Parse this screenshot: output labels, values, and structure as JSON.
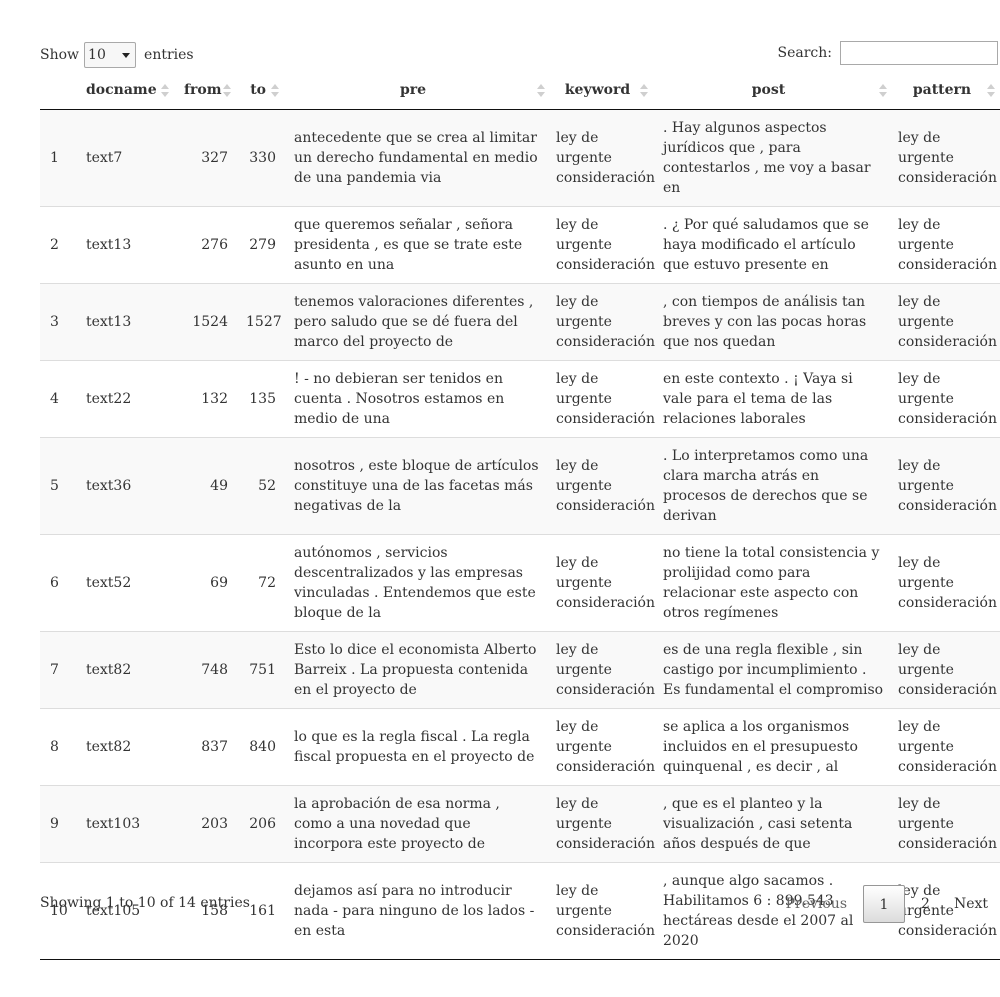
{
  "length": {
    "show_label": "Show",
    "selected": "10",
    "entries_label": "entries"
  },
  "search": {
    "label": "Search:",
    "value": "",
    "placeholder": ""
  },
  "columns": [
    "",
    "docname",
    "from",
    "to",
    "pre",
    "keyword",
    "post",
    "pattern"
  ],
  "rows": [
    {
      "idx": "1",
      "docname": "text7",
      "from": "327",
      "to": "330",
      "pre": "antecedente que se crea al limitar un derecho fundamental en medio de una pandemia via",
      "keyword": "ley de urgente consideración",
      "post": ". Hay algunos aspectos jurídicos que , para contestarlos , me voy a basar en",
      "pattern": "ley de urgente consideración"
    },
    {
      "idx": "2",
      "docname": "text13",
      "from": "276",
      "to": "279",
      "pre": "que queremos señalar , señora presidenta , es que se trate este asunto en una",
      "keyword": "ley de urgente consideración",
      "post": ". ¿ Por qué saludamos que se haya modificado el artículo que estuvo presente en",
      "pattern": "ley de urgente consideración"
    },
    {
      "idx": "3",
      "docname": "text13",
      "from": "1524",
      "to": "1527",
      "pre": "tenemos valoraciones diferentes , pero saludo que se dé fuera del marco del proyecto de",
      "keyword": "ley de urgente consideración",
      "post": ", con tiempos de análisis tan breves y con las pocas horas que nos quedan",
      "pattern": "ley de urgente consideración"
    },
    {
      "idx": "4",
      "docname": "text22",
      "from": "132",
      "to": "135",
      "pre": "! - no debieran ser tenidos en cuenta . Nosotros estamos en medio de una",
      "keyword": "ley de urgente consideración",
      "post": "en este contexto . ¡ Vaya si vale para el tema de las relaciones laborales",
      "pattern": "ley de urgente consideración"
    },
    {
      "idx": "5",
      "docname": "text36",
      "from": "49",
      "to": "52",
      "pre": "nosotros , este bloque de artículos constituye una de las facetas más negativas de la",
      "keyword": "ley de urgente consideración",
      "post": ". Lo interpretamos como una clara marcha atrás en procesos de derechos que se derivan",
      "pattern": "ley de urgente consideración"
    },
    {
      "idx": "6",
      "docname": "text52",
      "from": "69",
      "to": "72",
      "pre": "autónomos , servicios descentralizados y las empresas vinculadas . Entendemos que este bloque de la",
      "keyword": "ley de urgente consideración",
      "post": "no tiene la total consistencia y prolijidad como para relacionar este aspecto con otros regímenes",
      "pattern": "ley de urgente consideración"
    },
    {
      "idx": "7",
      "docname": "text82",
      "from": "748",
      "to": "751",
      "pre": "Esto lo dice el economista Alberto Barreix . La propuesta contenida en el proyecto de",
      "keyword": "ley de urgente consideración",
      "post": "es de una regla flexible , sin castigo por incumplimiento . Es fundamental el compromiso",
      "pattern": "ley de urgente consideración"
    },
    {
      "idx": "8",
      "docname": "text82",
      "from": "837",
      "to": "840",
      "pre": "lo que es la regla fiscal . La regla fiscal propuesta en el proyecto de",
      "keyword": "ley de urgente consideración",
      "post": "se aplica a los organismos incluidos en el presupuesto quinquenal , es decir , al",
      "pattern": "ley de urgente consideración"
    },
    {
      "idx": "9",
      "docname": "text103",
      "from": "203",
      "to": "206",
      "pre": "la aprobación de esa norma , como a una novedad que incorpora este proyecto de",
      "keyword": "ley de urgente consideración",
      "post": ", que es el planteo y la visualización , casi setenta años después de que",
      "pattern": "ley de urgente consideración"
    },
    {
      "idx": "10",
      "docname": "text105",
      "from": "158",
      "to": "161",
      "pre": "dejamos así para no introducir nada - para ninguno de los lados - en esta",
      "keyword": "ley de urgente consideración",
      "post": ", aunque algo sacamos . Habilitamos 6 : 899.543 hectáreas desde el 2007 al 2020",
      "pattern": "ley de urgente consideración"
    }
  ],
  "info": "Showing 1 to 10 of 14 entries",
  "pager": {
    "previous": "Previous",
    "pages": [
      "1",
      "2"
    ],
    "next": "Next"
  }
}
